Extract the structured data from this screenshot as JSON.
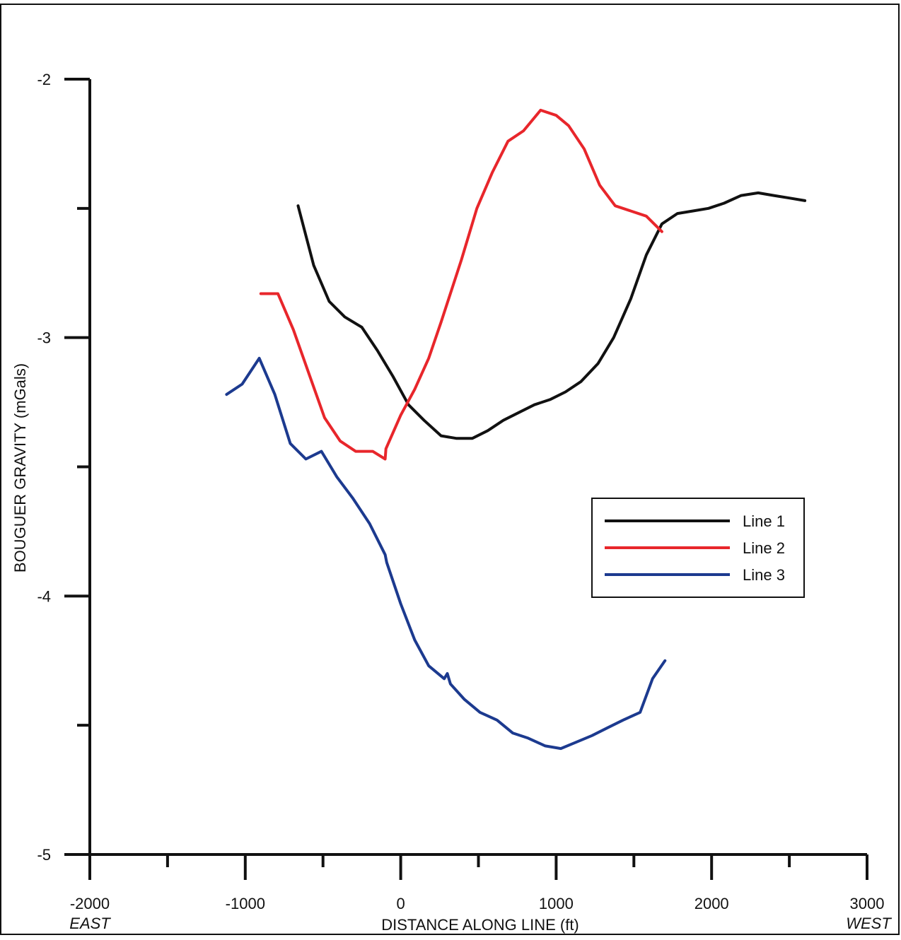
{
  "chart_data": {
    "type": "line",
    "xlabel": "DISTANCE ALONG LINE (ft)",
    "ylabel": "BOUGUER GRAVITY (mGals)",
    "xlim": [
      -2000,
      3000
    ],
    "ylim": [
      -5,
      -2
    ],
    "x_ticks_major": [
      -2000,
      -1000,
      0,
      1000,
      2000,
      3000
    ],
    "x_tick_labels": [
      "-2000",
      "-1000",
      "0",
      "1000",
      "2000",
      "3000"
    ],
    "x_ticks_minor": [
      -1500,
      -500,
      500,
      1500,
      2500
    ],
    "y_ticks_major": [
      -2,
      -3,
      -4,
      -5
    ],
    "y_tick_labels": [
      "-2",
      "-3",
      "-4",
      "-5"
    ],
    "y_ticks_minor": [
      -2.5,
      -3.5,
      -4.5
    ],
    "direction_labels": {
      "left": "EAST",
      "right": "WEST"
    },
    "grid": false,
    "legend_position": "right-middle",
    "series": [
      {
        "name": "Line 1",
        "color": "#111111",
        "x": [
          -660,
          -560,
          -460,
          -360,
          -250,
          -150,
          -50,
          50,
          150,
          260,
          360,
          460,
          560,
          660,
          760,
          860,
          960,
          1060,
          1160,
          1270,
          1370,
          1480,
          1580,
          1680,
          1780,
          1880,
          1980,
          2080,
          2190,
          2300,
          2400,
          2500,
          2600
        ],
        "y": [
          -2.49,
          -2.72,
          -2.86,
          -2.92,
          -2.96,
          -3.05,
          -3.15,
          -3.26,
          -3.32,
          -3.38,
          -3.39,
          -3.39,
          -3.36,
          -3.32,
          -3.29,
          -3.26,
          -3.24,
          -3.21,
          -3.17,
          -3.1,
          -3.0,
          -2.85,
          -2.68,
          -2.56,
          -2.52,
          -2.51,
          -2.5,
          -2.48,
          -2.45,
          -2.44,
          -2.45,
          -2.46,
          -2.47
        ]
      },
      {
        "name": "Line 2",
        "color": "#e8262b",
        "x": [
          -900,
          -790,
          -690,
          -590,
          -490,
          -390,
          -290,
          -180,
          -100,
          -95,
          0,
          90,
          180,
          260,
          390,
          490,
          590,
          690,
          790,
          900,
          1000,
          1080,
          1180,
          1280,
          1380,
          1480,
          1580,
          1680
        ],
        "y": [
          -2.83,
          -2.83,
          -2.97,
          -3.14,
          -3.31,
          -3.4,
          -3.44,
          -3.44,
          -3.47,
          -3.43,
          -3.3,
          -3.2,
          -3.08,
          -2.94,
          -2.7,
          -2.5,
          -2.36,
          -2.24,
          -2.2,
          -2.12,
          -2.14,
          -2.18,
          -2.27,
          -2.41,
          -2.49,
          -2.51,
          -2.53,
          -2.59
        ]
      },
      {
        "name": "Line 3",
        "color": "#1c3a8f",
        "x": [
          -1120,
          -1020,
          -910,
          -810,
          -710,
          -610,
          -510,
          -410,
          -310,
          -200,
          -100,
          -90,
          0,
          90,
          180,
          280,
          300,
          320,
          410,
          510,
          620,
          720,
          820,
          930,
          1030,
          1110,
          1230,
          1330,
          1430,
          1540,
          1620,
          1700
        ],
        "y": [
          -3.22,
          -3.18,
          -3.08,
          -3.22,
          -3.41,
          -3.47,
          -3.44,
          -3.54,
          -3.62,
          -3.72,
          -3.84,
          -3.87,
          -4.03,
          -4.17,
          -4.27,
          -4.32,
          -4.3,
          -4.34,
          -4.4,
          -4.45,
          -4.48,
          -4.53,
          -4.55,
          -4.58,
          -4.59,
          -4.57,
          -4.54,
          -4.51,
          -4.48,
          -4.45,
          -4.32,
          -4.25
        ]
      }
    ]
  }
}
